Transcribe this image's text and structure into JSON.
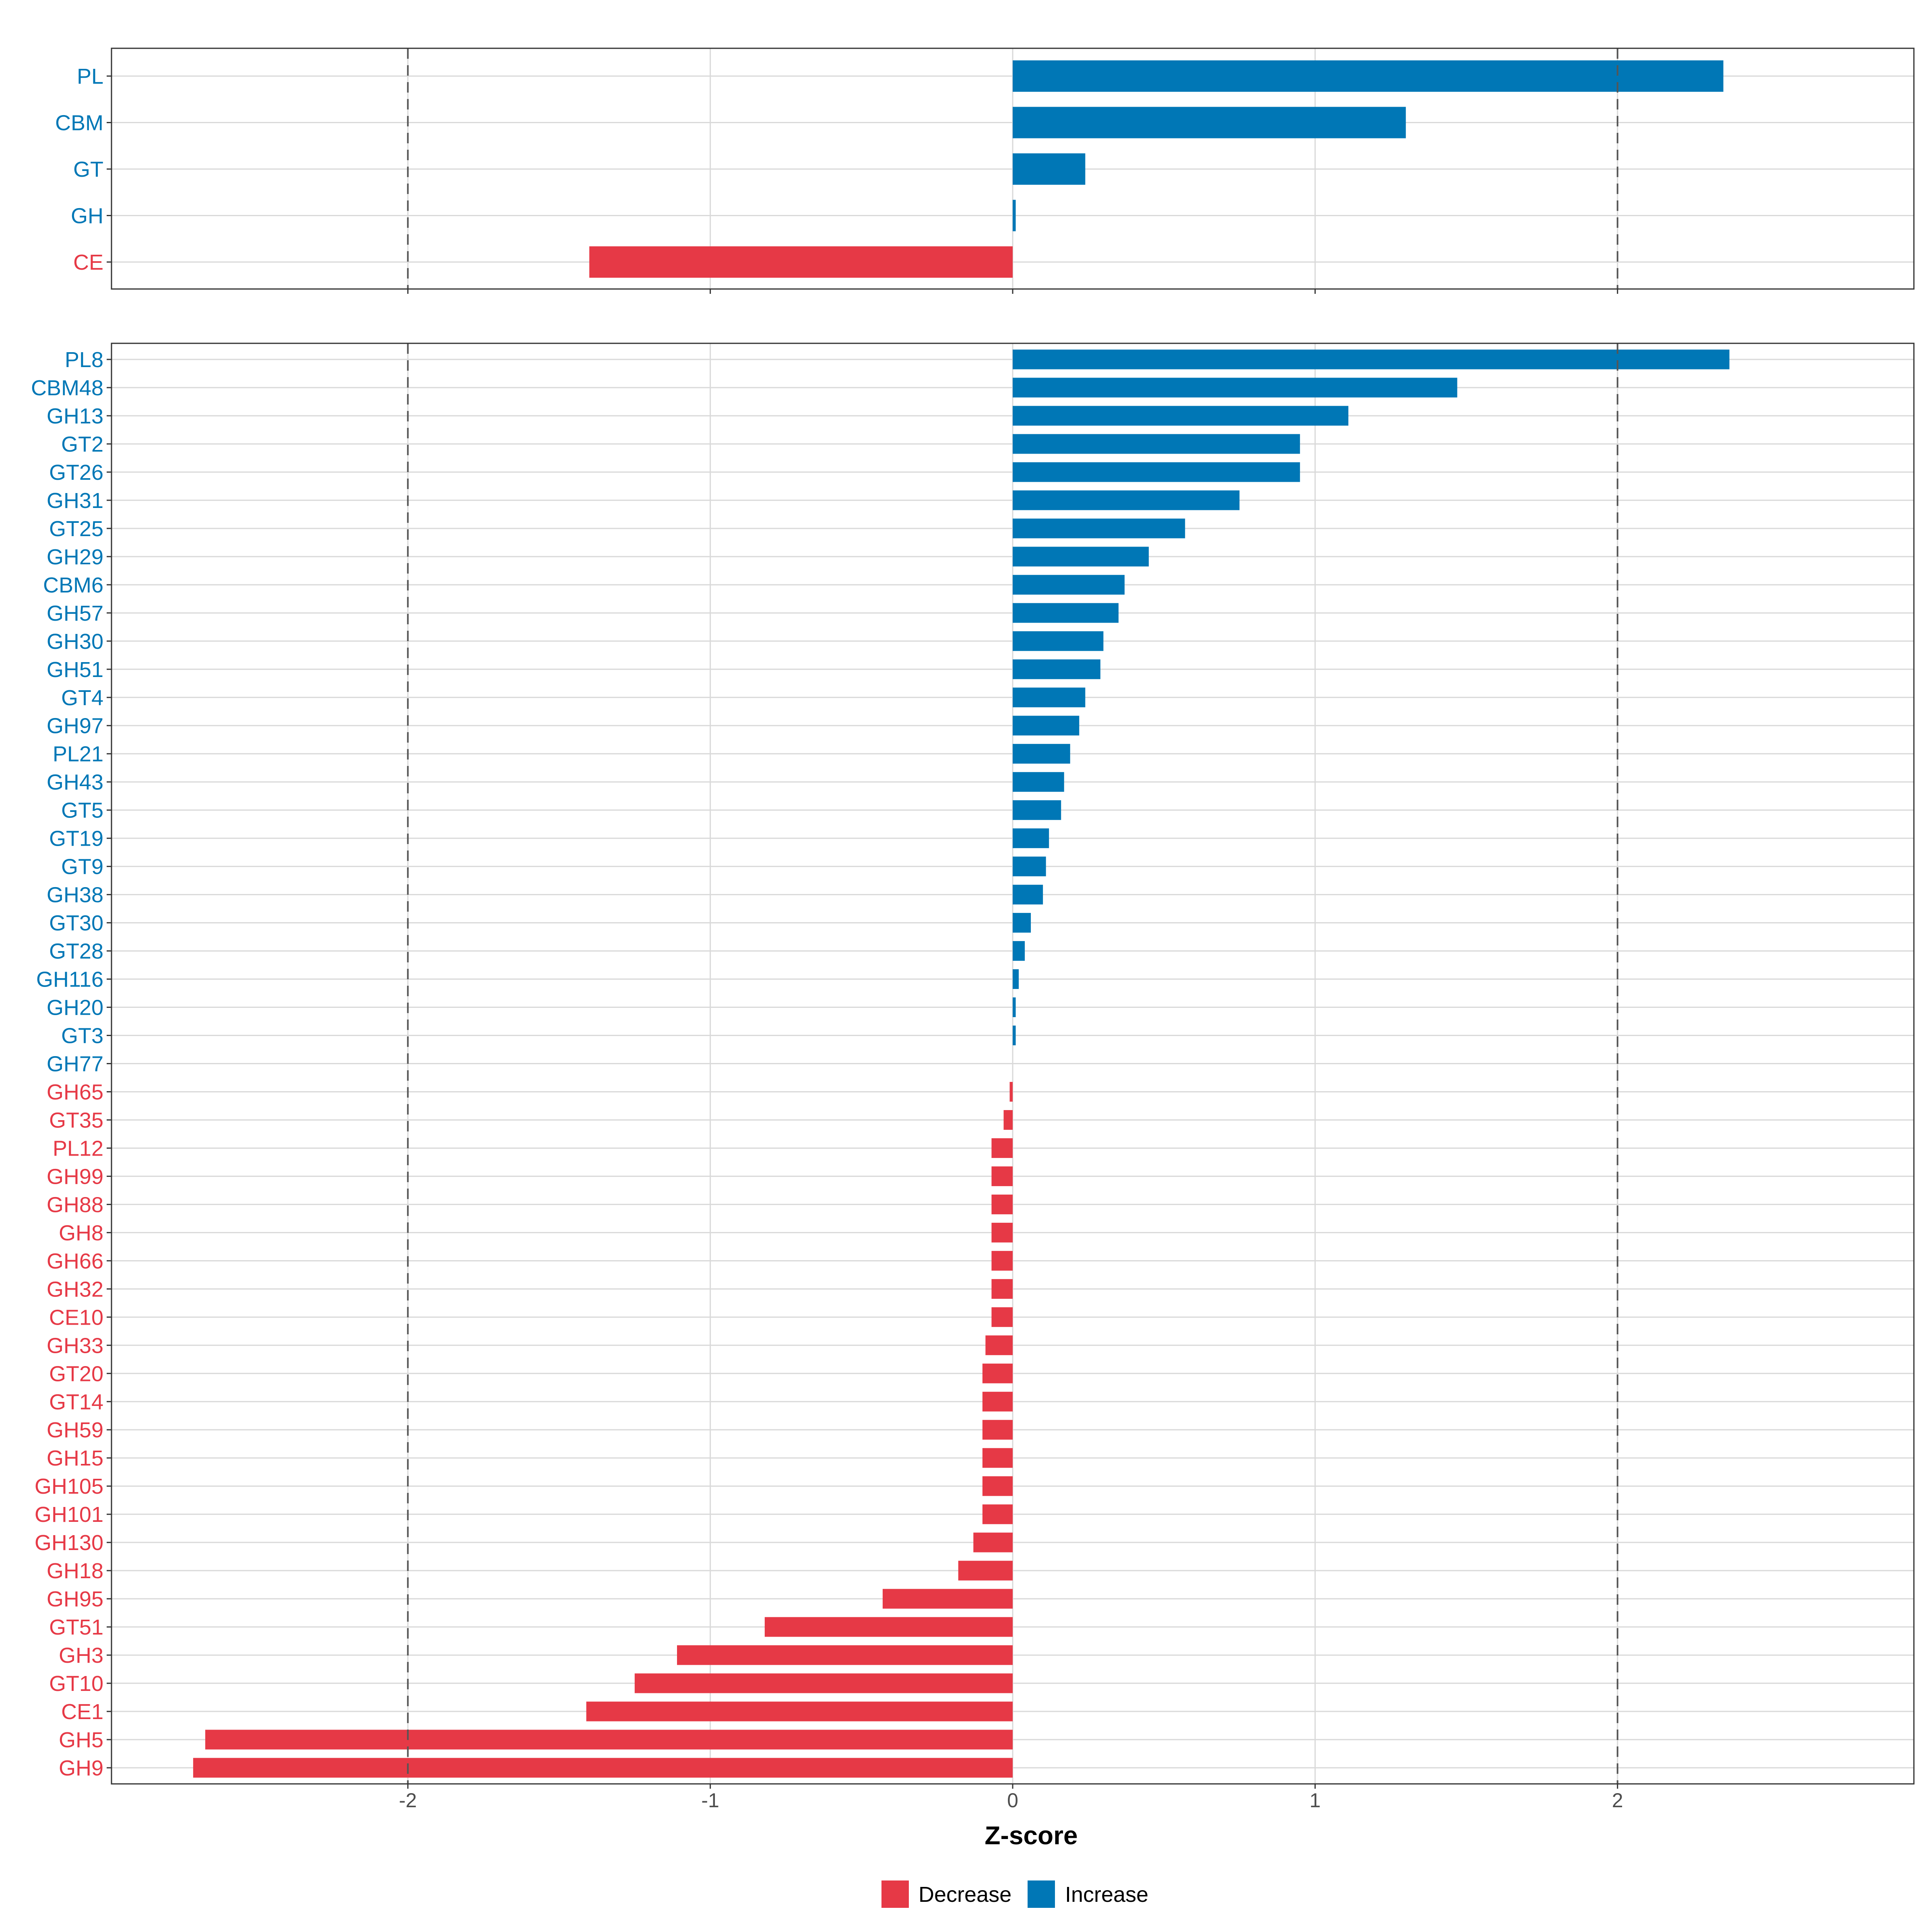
{
  "chart_data": {
    "type": "bar",
    "orientation": "horizontal",
    "xlabel": "Z-score",
    "xlim": [
      -2.98,
      2.98
    ],
    "x_ticks": [
      -2,
      -1,
      0,
      1,
      2
    ],
    "reference_lines": [
      -2,
      2
    ],
    "grid": true,
    "legend_position": "bottom",
    "legend": [
      {
        "name": "Decrease",
        "color": "#E63946"
      },
      {
        "name": "Increase",
        "color": "#0077B6"
      }
    ],
    "colors": {
      "decrease": "#E63946",
      "increase": "#0077B6"
    },
    "panels": [
      {
        "name": "class",
        "categories": [
          "PL",
          "CBM",
          "GT",
          "GH",
          "CE"
        ],
        "values": [
          2.35,
          1.3,
          0.24,
          0.01,
          -1.4
        ]
      },
      {
        "name": "family",
        "categories": [
          "PL8",
          "CBM48",
          "GH13",
          "GT2",
          "GT26",
          "GH31",
          "GT25",
          "GH29",
          "CBM6",
          "GH57",
          "GH30",
          "GH51",
          "GT4",
          "GH97",
          "PL21",
          "GH43",
          "GT5",
          "GT19",
          "GT9",
          "GH38",
          "GT30",
          "GT28",
          "GH116",
          "GH20",
          "GT3",
          "GH77",
          "GH65",
          "GT35",
          "PL12",
          "GH99",
          "GH88",
          "GH8",
          "GH66",
          "GH32",
          "CE10",
          "GH33",
          "GT20",
          "GT14",
          "GH59",
          "GH15",
          "GH105",
          "GH101",
          "GH130",
          "GH18",
          "GH95",
          "GT51",
          "GH3",
          "GT10",
          "CE1",
          "GH5",
          "GH9"
        ],
        "values": [
          2.37,
          1.47,
          1.11,
          0.95,
          0.95,
          0.75,
          0.57,
          0.45,
          0.37,
          0.35,
          0.3,
          0.29,
          0.24,
          0.22,
          0.19,
          0.17,
          0.16,
          0.12,
          0.11,
          0.1,
          0.06,
          0.04,
          0.02,
          0.01,
          0.01,
          0.0,
          -0.01,
          -0.03,
          -0.07,
          -0.07,
          -0.07,
          -0.07,
          -0.07,
          -0.07,
          -0.07,
          -0.09,
          -0.1,
          -0.1,
          -0.1,
          -0.1,
          -0.1,
          -0.1,
          -0.13,
          -0.18,
          -0.43,
          -0.82,
          -1.11,
          -1.25,
          -1.41,
          -2.67,
          -2.71
        ]
      }
    ]
  }
}
